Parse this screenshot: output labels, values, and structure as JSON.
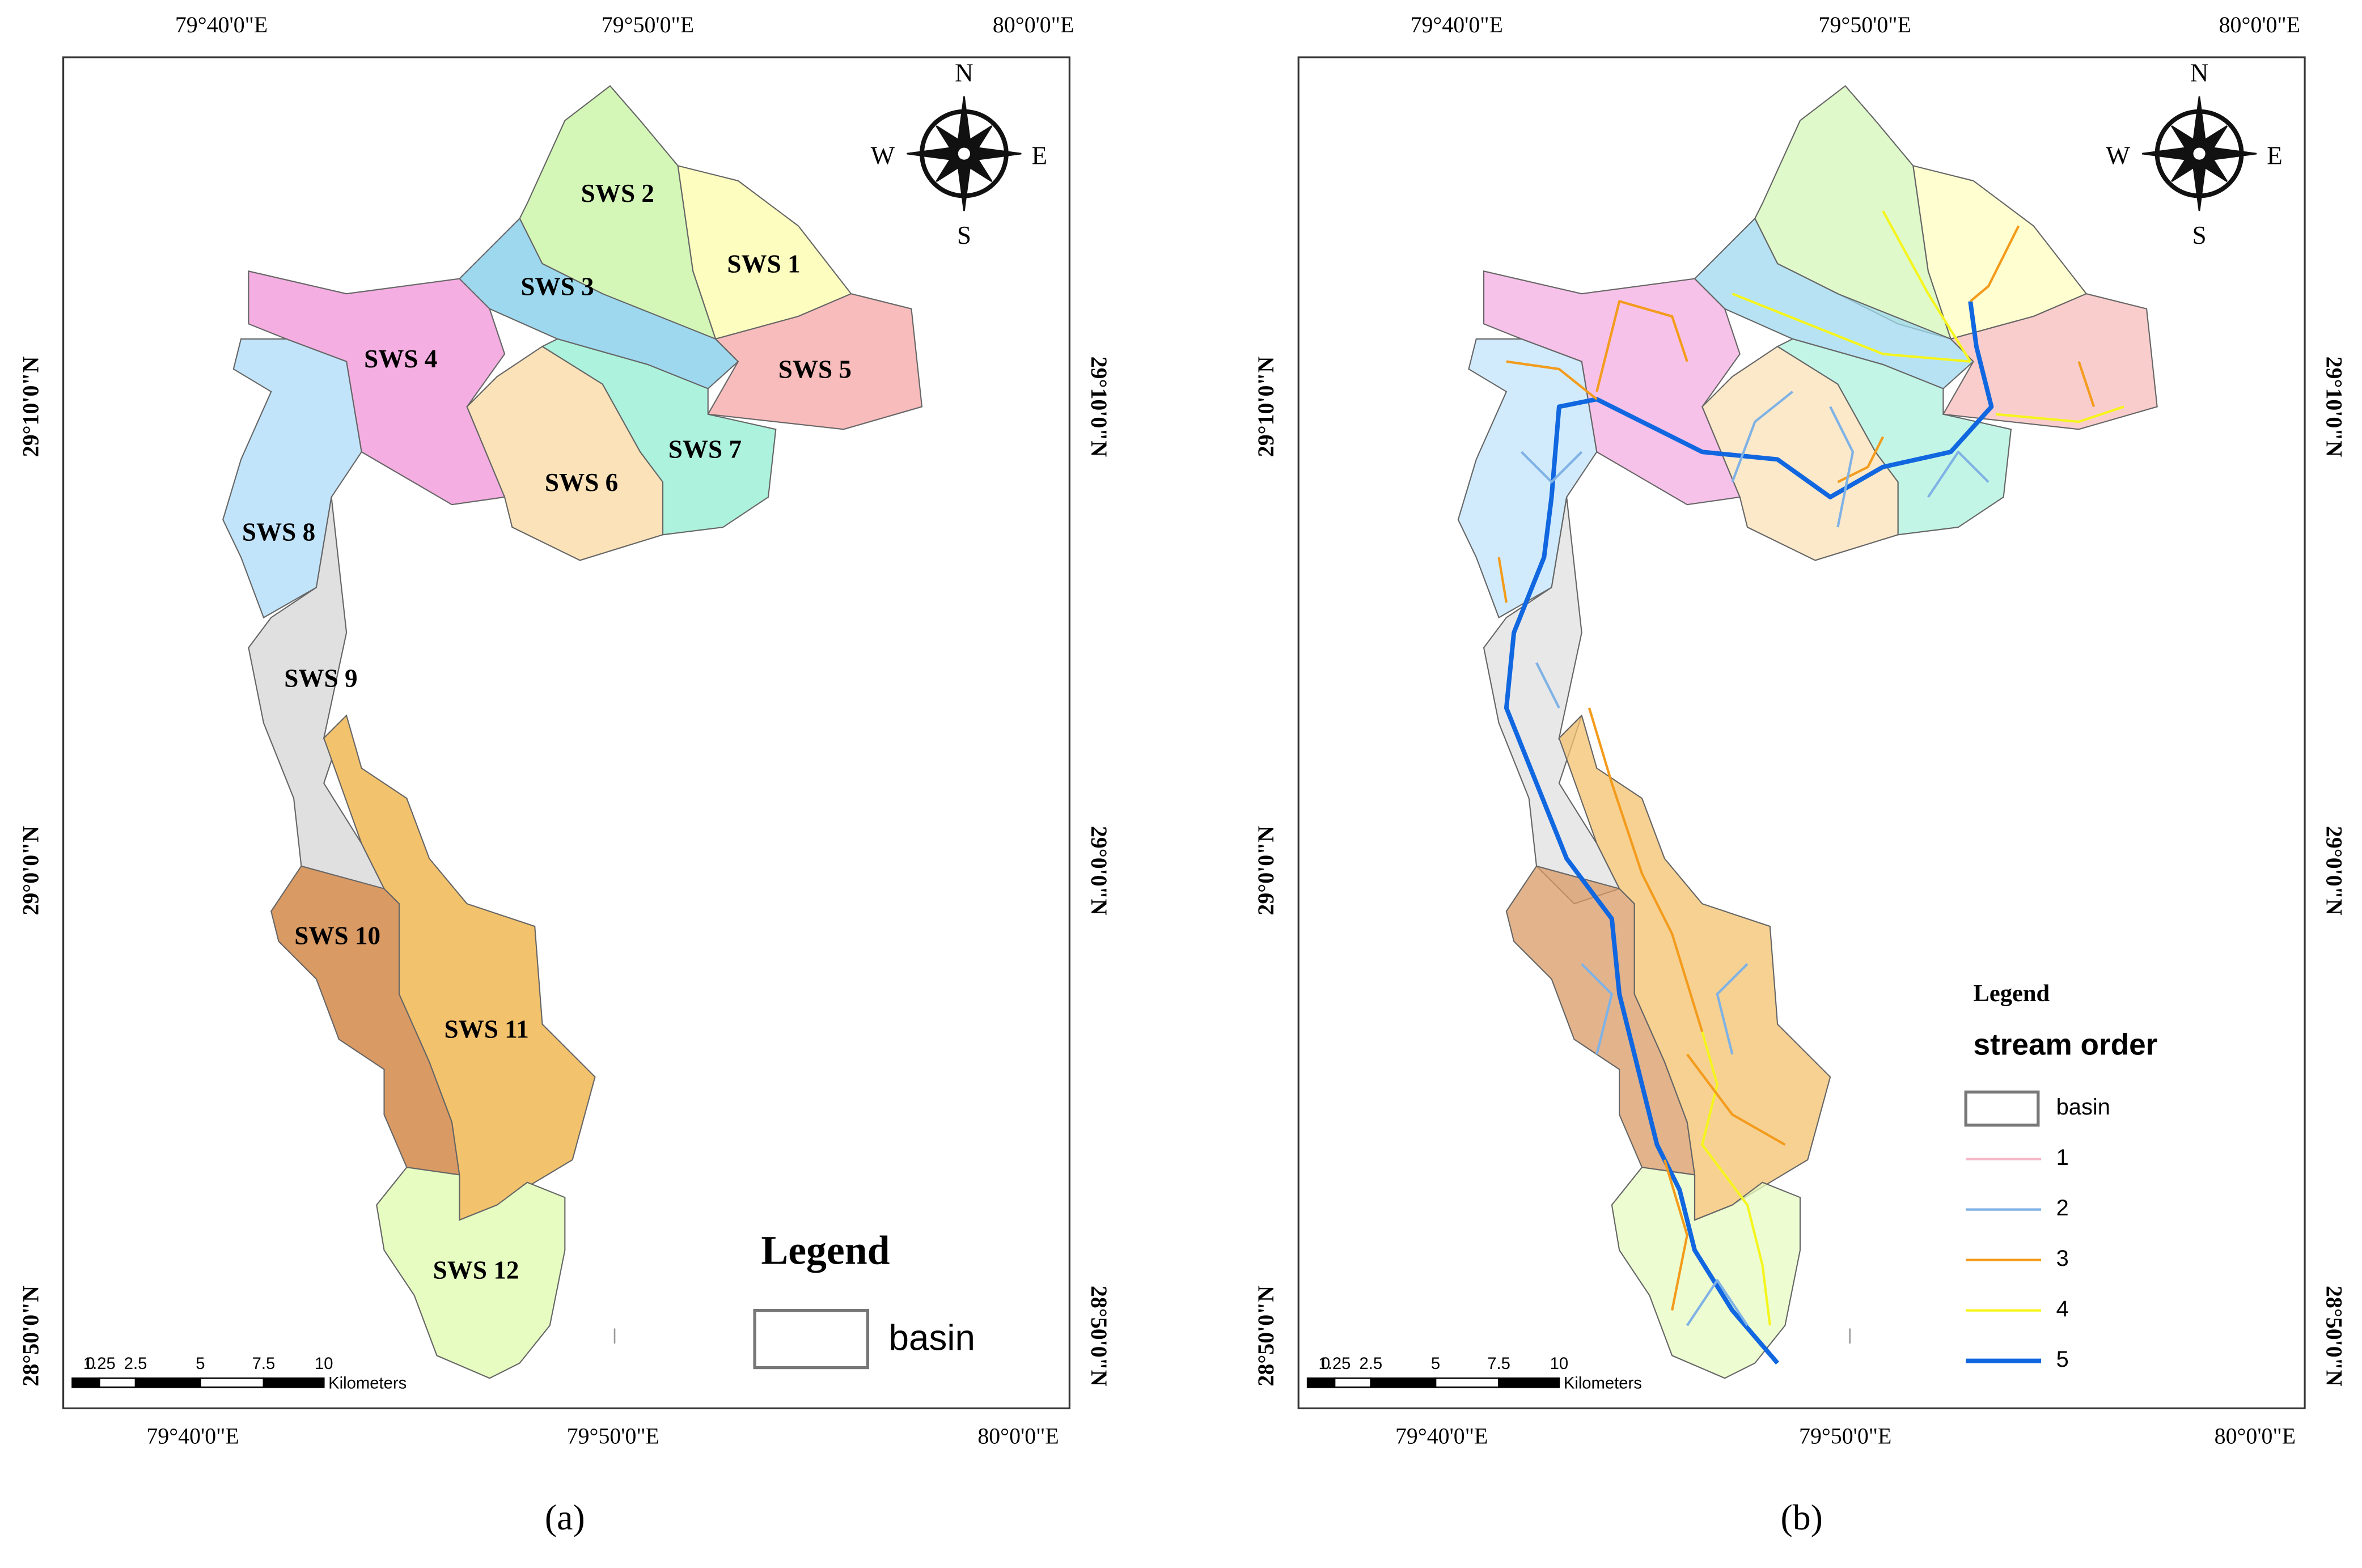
{
  "panels": [
    {
      "label": "(a)",
      "top_labels": [
        "79°40'0\"E",
        "79°50'0\"E",
        "80°0'0\"E"
      ],
      "bottom_labels": [
        "79°40'0\"E",
        "79°50'0\"E",
        "80°0'0\"E"
      ],
      "left_labels": [
        "29°10'0\"N",
        "29°0'0\"N",
        "28°50'0\"N"
      ],
      "right_labels": [
        "29°10'0\"N",
        "29°0'0\"N",
        "28°50'0\"N"
      ],
      "compass": [
        "N",
        "E",
        "S",
        "W"
      ],
      "scale": [
        "0",
        "1.25",
        "2.5",
        "5",
        "7.5",
        "10"
      ],
      "scale_unit": "Kilometers",
      "sub_watersheds": [
        "SWS 1",
        "SWS 2",
        "SWS 3",
        "SWS 4",
        "SWS 5",
        "SWS 6",
        "SWS 7",
        "SWS 8",
        "SWS 9",
        "SWS 10",
        "SWS 11",
        "SWS 12"
      ],
      "legend": {
        "title": "Legend",
        "items": [
          "basin"
        ]
      }
    },
    {
      "label": "(b)",
      "top_labels": [
        "79°40'0\"E",
        "79°50'0\"E",
        "80°0'0\"E"
      ],
      "bottom_labels": [
        "79°40'0\"E",
        "79°50'0\"E",
        "80°0'0\"E"
      ],
      "left_labels": [
        "29°10'0\"N",
        "29°0'0\"N",
        "28°50'0\"N"
      ],
      "right_labels": [
        "29°10'0\"N",
        "29°0'0\"N",
        "28°50'0\"N"
      ],
      "compass": [
        "N",
        "E",
        "S",
        "W"
      ],
      "scale": [
        "0",
        "1.25",
        "2.5",
        "5",
        "7.5",
        "10"
      ],
      "scale_unit": "Kilometers",
      "legend": {
        "title": "Legend",
        "subtitle": "stream order",
        "items": [
          "basin",
          "1",
          "2",
          "3",
          "4",
          "5"
        ]
      }
    }
  ]
}
